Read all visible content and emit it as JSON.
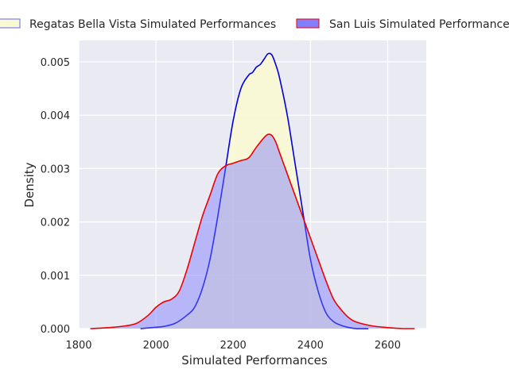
{
  "chart_data": {
    "type": "area",
    "title": "",
    "xlabel": "Simulated Performances",
    "ylabel": "Density",
    "xlim": [
      1800,
      2700
    ],
    "ylim": [
      0,
      0.0054
    ],
    "xticks": [
      1800,
      2000,
      2200,
      2400,
      2600
    ],
    "xtick_labels": [
      "1800",
      "2000",
      "2200",
      "2400",
      "2600"
    ],
    "yticks": [
      0,
      0.001,
      0.002,
      0.003,
      0.004,
      0.005
    ],
    "ytick_labels": [
      "0.000",
      "0.001",
      "0.002",
      "0.003",
      "0.004",
      "0.005"
    ],
    "grid": true,
    "legend_position": "top",
    "series": [
      {
        "name": "Regatas Bella Vista Simulated Performances",
        "line_color": "#0000dd",
        "fill_color": "#fafad2",
        "fill_opacity": 0.85,
        "legend_edge": "#6666ee",
        "x": [
          1960,
          1990,
          2020,
          2050,
          2080,
          2100,
          2120,
          2140,
          2160,
          2180,
          2200,
          2220,
          2240,
          2250,
          2260,
          2270,
          2280,
          2290,
          2300,
          2310,
          2320,
          2340,
          2360,
          2380,
          2400,
          2420,
          2440,
          2460,
          2480,
          2500,
          2520,
          2550
        ],
        "y": [
          0.0,
          2e-05,
          4e-05,
          0.0001,
          0.00025,
          0.0004,
          0.00075,
          0.0013,
          0.0021,
          0.003,
          0.0039,
          0.0045,
          0.00475,
          0.0048,
          0.0049,
          0.00495,
          0.00505,
          0.00515,
          0.00513,
          0.00495,
          0.0047,
          0.004,
          0.0031,
          0.0022,
          0.0013,
          0.0007,
          0.0003,
          0.00013,
          6e-05,
          2e-05,
          0.0,
          0.0
        ]
      },
      {
        "name": "San Luis Simulated Performances",
        "line_color": "#ee0000",
        "fill_color": "#7777ff",
        "fill_opacity": 0.45,
        "legend_edge": "#ee0000",
        "x": [
          1830,
          1880,
          1920,
          1950,
          1980,
          2000,
          2020,
          2040,
          2060,
          2080,
          2100,
          2120,
          2140,
          2160,
          2180,
          2200,
          2220,
          2240,
          2260,
          2280,
          2290,
          2300,
          2310,
          2320,
          2340,
          2360,
          2380,
          2400,
          2420,
          2440,
          2460,
          2480,
          2500,
          2520,
          2560,
          2600,
          2640,
          2670
        ],
        "y": [
          0.0,
          2e-05,
          5e-05,
          0.0001,
          0.00025,
          0.0004,
          0.0005,
          0.00055,
          0.0007,
          0.0011,
          0.0016,
          0.0021,
          0.0025,
          0.0029,
          0.00305,
          0.0031,
          0.00315,
          0.0032,
          0.0034,
          0.00358,
          0.00364,
          0.00362,
          0.0035,
          0.0033,
          0.0029,
          0.0025,
          0.0021,
          0.0017,
          0.0013,
          0.0009,
          0.00055,
          0.00035,
          0.0002,
          0.00012,
          5e-05,
          2e-05,
          0.0,
          0.0
        ]
      }
    ]
  }
}
